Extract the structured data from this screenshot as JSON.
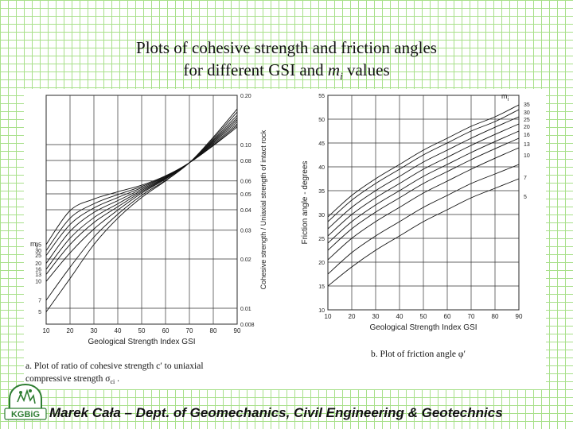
{
  "slide": {
    "title_line1": "Plots of cohesive strength and friction angles",
    "title_line2_pre": "for different GSI and ",
    "title_line2_m": "m",
    "title_line2_sub": "i",
    "title_line2_post": " values",
    "footer": "Marek Cała – Dept. of Geomechanics, Civil Engineering & Geotechnics",
    "logo_text": "KGBiG"
  },
  "chart_data": [
    {
      "type": "line",
      "xlabel": "Geological Strength Index GSI",
      "ylabel": "Cohesive strength / Uniaxial strength of intact rock",
      "xlim": [
        10,
        90
      ],
      "ylim": [
        0.008,
        0.2
      ],
      "yscale": "log",
      "x_ticks": [
        10,
        20,
        30,
        40,
        50,
        60,
        70,
        80,
        90
      ],
      "y_ticks": [
        0.2,
        0.1,
        0.08,
        0.06,
        0.05,
        0.04,
        0.03,
        0.02,
        0.01,
        0.008
      ],
      "y_tick_labels": [
        "0.20",
        "0.10",
        "0.08",
        "0.06",
        "0.05",
        "0.04",
        "0.03",
        "0.02",
        "0.01",
        "0.008"
      ],
      "legend_title": "m",
      "legend_sub": "i",
      "legend_labels": [
        "35",
        "30",
        "25",
        "20",
        "16",
        "13",
        "10",
        "7",
        "5"
      ],
      "caption_line1": "a.  Plot of ratio of cohesive strength  c′  to uniaxial",
      "caption_line2": "compressive strength σ",
      "caption_sub": "ci",
      "x": [
        10,
        20,
        30,
        40,
        50,
        60,
        70,
        80,
        90
      ],
      "series": [
        {
          "name": "35",
          "values": [
            0.0245,
            0.0395,
            0.0465,
            0.0515,
            0.0565,
            0.0645,
            0.0775,
            0.0985,
            0.128
          ]
        },
        {
          "name": "30",
          "values": [
            0.0225,
            0.0355,
            0.0435,
            0.0495,
            0.0555,
            0.064,
            0.0775,
            0.0995,
            0.131
          ]
        },
        {
          "name": "25",
          "values": [
            0.021,
            0.0325,
            0.041,
            0.0475,
            0.0545,
            0.0635,
            0.0775,
            0.101,
            0.134
          ]
        },
        {
          "name": "20",
          "values": [
            0.0188,
            0.0295,
            0.0385,
            0.0455,
            0.0535,
            0.063,
            0.0775,
            0.1025,
            0.138
          ]
        },
        {
          "name": "16",
          "values": [
            0.0173,
            0.0268,
            0.0358,
            0.0435,
            0.0525,
            0.0625,
            0.0775,
            0.104,
            0.142
          ]
        },
        {
          "name": "13",
          "values": [
            0.0161,
            0.0245,
            0.0334,
            0.0417,
            0.0515,
            0.062,
            0.0775,
            0.1055,
            0.146
          ]
        },
        {
          "name": "10",
          "values": [
            0.0146,
            0.0218,
            0.0305,
            0.0398,
            0.0505,
            0.0615,
            0.0775,
            0.107,
            0.151
          ]
        },
        {
          "name": "7",
          "values": [
            0.0112,
            0.0178,
            0.0272,
            0.0375,
            0.049,
            0.0605,
            0.0775,
            0.109,
            0.158
          ]
        },
        {
          "name": "5",
          "values": [
            0.0095,
            0.0152,
            0.0245,
            0.0355,
            0.0475,
            0.06,
            0.0775,
            0.111,
            0.165
          ]
        }
      ]
    },
    {
      "type": "line",
      "xlabel": "Geological Strength Index GSI",
      "ylabel": "Friction angle - degrees",
      "xlim": [
        10,
        90
      ],
      "ylim": [
        10,
        55
      ],
      "x_ticks": [
        10,
        20,
        30,
        40,
        50,
        60,
        70,
        80,
        90
      ],
      "y_ticks": [
        10,
        15,
        20,
        25,
        30,
        35,
        40,
        45,
        50,
        55
      ],
      "legend_title": "m",
      "legend_sub": "i",
      "legend_labels": [
        "35",
        "30",
        "25",
        "20",
        "16",
        "13",
        "10",
        "7",
        "5"
      ],
      "caption": "b.   Plot of friction angle φ′",
      "x": [
        10,
        20,
        30,
        40,
        50,
        60,
        70,
        80,
        90
      ],
      "series": [
        {
          "name": "35",
          "values": [
            29.5,
            34.0,
            37.5,
            40.5,
            43.5,
            46.0,
            48.5,
            50.5,
            53.0
          ]
        },
        {
          "name": "30",
          "values": [
            28.5,
            33.0,
            36.5,
            39.5,
            42.5,
            45.0,
            47.5,
            49.5,
            52.0
          ]
        },
        {
          "name": "25",
          "values": [
            27.0,
            31.5,
            35.0,
            38.0,
            41.0,
            43.5,
            46.0,
            48.3,
            50.5
          ]
        },
        {
          "name": "20",
          "values": [
            25.5,
            30.0,
            33.5,
            36.5,
            39.5,
            42.0,
            44.5,
            46.8,
            49.0
          ]
        },
        {
          "name": "16",
          "values": [
            24.0,
            28.5,
            32.0,
            35.0,
            38.0,
            40.5,
            43.0,
            45.3,
            47.5
          ]
        },
        {
          "name": "13",
          "values": [
            22.5,
            27.0,
            30.5,
            33.5,
            36.5,
            39.0,
            41.5,
            43.8,
            46.0
          ]
        },
        {
          "name": "10",
          "values": [
            20.5,
            25.0,
            28.5,
            31.5,
            34.5,
            37.0,
            39.5,
            41.8,
            44.0
          ]
        },
        {
          "name": "7",
          "values": [
            17.5,
            22.0,
            25.5,
            28.5,
            31.5,
            34.0,
            36.5,
            38.5,
            40.5
          ]
        },
        {
          "name": "5",
          "values": [
            15.0,
            19.0,
            22.5,
            25.5,
            28.5,
            31.0,
            33.5,
            35.5,
            37.5
          ]
        }
      ]
    }
  ]
}
